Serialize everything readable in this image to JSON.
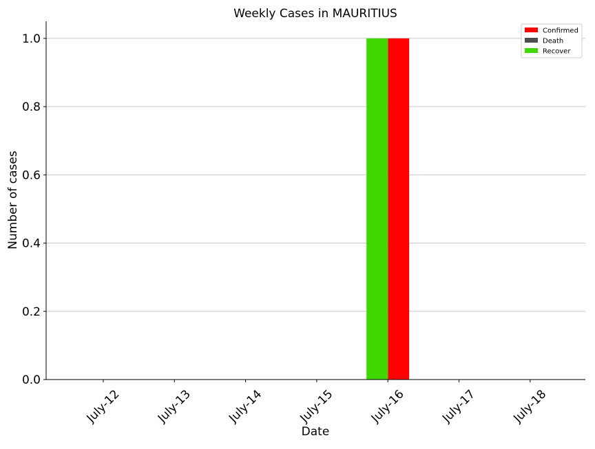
{
  "chart_data": {
    "type": "bar",
    "title": "Weekly Cases in MAURITIUS",
    "xlabel": "Date",
    "ylabel": "Number of cases",
    "categories": [
      "July-12",
      "July-13",
      "July-14",
      "July-15",
      "July-16",
      "July-17",
      "July-18"
    ],
    "series": [
      {
        "name": "Confirmed",
        "color": "#ff0000",
        "values": [
          0,
          0,
          0,
          0,
          1,
          0,
          0
        ]
      },
      {
        "name": "Death",
        "color": "#4d4d4d",
        "values": [
          0,
          0,
          0,
          0,
          0,
          0,
          0
        ]
      },
      {
        "name": "Recover",
        "color": "#3fd800",
        "values": [
          0,
          0,
          0,
          0,
          1,
          0,
          0
        ]
      }
    ],
    "ylim": [
      0,
      1.05
    ],
    "yticks": [
      "0.0",
      "0.2",
      "0.4",
      "0.6",
      "0.8",
      "1.0"
    ],
    "ytick_values": [
      0,
      0.2,
      0.4,
      0.6,
      0.8,
      1.0
    ],
    "grid": "horizontal",
    "legend_position": "top-right"
  }
}
